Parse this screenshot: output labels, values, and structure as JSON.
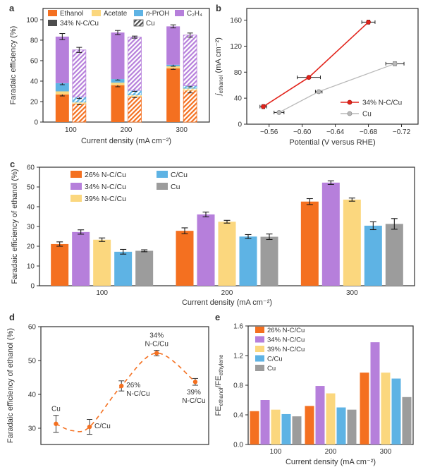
{
  "figure": {
    "background": "#ffffff"
  },
  "palette": {
    "orange": "#f47020",
    "purple": "#b67fdb",
    "yellow": "#fbd77e",
    "blue": "#5eb3e4",
    "gray": "#9c9c9c",
    "red": "#e2231b",
    "gray_line": "#b9b9b9",
    "dark": "#4d4d4d",
    "frame": "#2e2e2e",
    "text": "#333333",
    "error": "#1a1a1a"
  },
  "chart_data": [
    {
      "id": "a",
      "letter": "a",
      "type": "stacked_bar_pairs",
      "ylabel": "Faradaic efficiency (%)",
      "xlabel": "Current density (mA cm⁻²)",
      "ylim": [
        0,
        111
      ],
      "yticks": [
        {
          "v": 0,
          "l": "0"
        },
        {
          "v": 20,
          "l": "20"
        },
        {
          "v": 40,
          "l": "40"
        },
        {
          "v": 60,
          "l": "60"
        },
        {
          "v": 80,
          "l": "80"
        },
        {
          "v": 100,
          "l": "100"
        }
      ],
      "categories": [
        "100",
        "200",
        "300"
      ],
      "components": [
        "Ethanol",
        "Acetate",
        [
          {
            "t": "n",
            "i": true
          },
          {
            "t": "-PrOH"
          }
        ],
        "C₂H₄"
      ],
      "component_colors": [
        "orange",
        "yellow",
        "blue",
        "purple"
      ],
      "series": [
        {
          "name": "34% N-C/Cu",
          "pattern": "solid",
          "stacks": [
            [
              27,
              3,
              8,
              45.5
            ],
            [
              36,
              2.5,
              3.5,
              45.5
            ],
            [
              52.5,
              2,
              1.5,
              37.5
            ]
          ],
          "seg_errs": [
            [
              1.5,
              0,
              1.5
            ],
            [
              1.5,
              0,
              1
            ],
            [
              1,
              0,
              1.5
            ]
          ],
          "total_errs": [
            3,
            2,
            1.5
          ]
        },
        {
          "name": "Cu",
          "pattern": "hatched",
          "stacks": [
            [
              18,
              1.5,
              5,
              46
            ],
            [
              25,
              1.5,
              4.5,
              52
            ],
            [
              31,
              2,
              2.5,
              49.5
            ]
          ],
          "seg_errs": [
            [
              1,
              0,
              1.5
            ],
            [
              1,
              0,
              1
            ],
            [
              2.5,
              0,
              1
            ]
          ],
          "total_errs": [
            2.5,
            1,
            2
          ]
        }
      ]
    },
    {
      "id": "b",
      "letter": "b",
      "type": "line_scatter",
      "ylabel": [
        {
          "t": "j",
          "i": true
        },
        {
          "t": "ethanol",
          "sub": true
        },
        {
          "t": " (mA cm⁻²)"
        }
      ],
      "xlabel": "Potential (V versus RHE)",
      "xlim": [
        -0.533,
        -0.74
      ],
      "ylim": [
        0,
        178
      ],
      "xticks": [
        {
          "v": -0.56,
          "l": "−0.56"
        },
        {
          "v": -0.6,
          "l": "−0.60"
        },
        {
          "v": -0.64,
          "l": "−0.64"
        },
        {
          "v": -0.68,
          "l": "−0.68"
        },
        {
          "v": -0.72,
          "l": "−0.72"
        }
      ],
      "yticks": [
        {
          "v": 0,
          "l": "0"
        },
        {
          "v": 40,
          "l": "40"
        },
        {
          "v": 80,
          "l": "80"
        },
        {
          "v": 120,
          "l": "120"
        },
        {
          "v": 160,
          "l": "160"
        }
      ],
      "series": [
        {
          "name": "34% N-C/Cu",
          "color": "red",
          "points": [
            {
              "x": -0.553,
              "y": 27,
              "xerr": 0.004,
              "yerr": 3
            },
            {
              "x": -0.608,
              "y": 72,
              "xerr": 0.014,
              "yerr": 2
            },
            {
              "x": -0.68,
              "y": 157,
              "xerr": 0.008,
              "yerr": 3
            }
          ]
        },
        {
          "name": "Cu",
          "color": "gray_line",
          "points": [
            {
              "x": -0.572,
              "y": 18,
              "xerr": 0.006,
              "yerr": 2
            },
            {
              "x": -0.62,
              "y": 50,
              "xerr": 0.004,
              "yerr": 2
            },
            {
              "x": -0.712,
              "y": 93,
              "xerr": 0.011,
              "yerr": 3
            }
          ]
        }
      ]
    },
    {
      "id": "c",
      "letter": "c",
      "type": "grouped_bar",
      "ylabel": "Faradaic efficiency of ethanol (%)",
      "xlabel": "Current density (mA cm⁻²)",
      "ylim": [
        0,
        60
      ],
      "yticks": [
        {
          "v": 0,
          "l": "0"
        },
        {
          "v": 10,
          "l": "10"
        },
        {
          "v": 20,
          "l": "20"
        },
        {
          "v": 30,
          "l": "30"
        },
        {
          "v": 40,
          "l": "40"
        },
        {
          "v": 50,
          "l": "50"
        },
        {
          "v": 60,
          "l": "60"
        }
      ],
      "categories": [
        "100",
        "200",
        "300"
      ],
      "series": [
        {
          "name": "26% N-C/Cu",
          "color": "orange",
          "values": [
            21.1,
            27.8,
            42.6
          ],
          "errs": [
            1.1,
            1.5,
            1.5
          ]
        },
        {
          "name": "34% N-C/Cu",
          "color": "purple",
          "values": [
            27.2,
            36.1,
            52.2
          ],
          "errs": [
            1.1,
            1.2,
            0.9
          ]
        },
        {
          "name": "39% N-C/Cu",
          "color": "yellow",
          "values": [
            23.3,
            32.4,
            43.6
          ],
          "errs": [
            0.9,
            0.7,
            0.8
          ]
        },
        {
          "name": "C/Cu",
          "color": "blue",
          "values": [
            17.2,
            24.9,
            30.4
          ],
          "errs": [
            1.2,
            1.0,
            2.0
          ]
        },
        {
          "name": "Cu",
          "color": "gray",
          "values": [
            17.7,
            24.8,
            31.3
          ],
          "errs": [
            0.5,
            1.4,
            2.7
          ]
        }
      ]
    },
    {
      "id": "d",
      "letter": "d",
      "type": "scatter_curve",
      "ylabel": "Faradaic efficiency of ethanol (%)",
      "ylim": [
        25.2,
        60
      ],
      "yticks": [
        {
          "v": 30,
          "l": "30"
        },
        {
          "v": 40,
          "l": "40"
        },
        {
          "v": 50,
          "l": "50"
        },
        {
          "v": 60,
          "l": "60"
        }
      ],
      "line_color": "orange",
      "points": [
        {
          "label_lines": [
            "Cu"
          ],
          "label_pos": "above",
          "xf": 0.09,
          "y": 31.3,
          "err": 2.5
        },
        {
          "label_lines": [
            "C/Cu"
          ],
          "label_pos": "right",
          "xf": 0.29,
          "y": 30.4,
          "err": 2.2
        },
        {
          "label_lines": [
            "26%",
            "N-C/Cu"
          ],
          "label_pos": "right",
          "xf": 0.48,
          "y": 42.5,
          "err": 1.5
        },
        {
          "label_lines": [
            "34%",
            "N-C/Cu"
          ],
          "label_pos": "above",
          "xf": 0.69,
          "y": 52.2,
          "err": 0.8
        },
        {
          "label_lines": [
            "39%",
            "N-C/Cu"
          ],
          "label_pos": "below",
          "xf": 0.92,
          "y": 43.7,
          "err": 1.0
        }
      ],
      "curve_extra": [
        {
          "after_index": 0,
          "xf": 0.185,
          "y": 29.3
        }
      ]
    },
    {
      "id": "e",
      "letter": "e",
      "type": "grouped_bar",
      "ylabel": [
        {
          "t": "FE"
        },
        {
          "t": "ethanol",
          "sub": true
        },
        {
          "t": "/FE"
        },
        {
          "t": "ethylene",
          "sub": true
        }
      ],
      "xlabel": "Current density (mA cm⁻²)",
      "ylim": [
        0,
        1.6
      ],
      "yticks": [
        {
          "v": 0,
          "l": "0.0"
        },
        {
          "v": 0.4,
          "l": "0.4"
        },
        {
          "v": 0.8,
          "l": "0.8"
        },
        {
          "v": 1.2,
          "l": "1.2"
        },
        {
          "v": 1.6,
          "l": "1.6"
        }
      ],
      "categories": [
        "100",
        "200",
        "300"
      ],
      "series": [
        {
          "name": "26% N-C/Cu",
          "color": "orange",
          "values": [
            0.45,
            0.52,
            0.97
          ]
        },
        {
          "name": "34% N-C/Cu",
          "color": "purple",
          "values": [
            0.6,
            0.79,
            1.38
          ]
        },
        {
          "name": "39% N-C/Cu",
          "color": "yellow",
          "values": [
            0.47,
            0.69,
            0.97
          ]
        },
        {
          "name": "C/Cu",
          "color": "blue",
          "values": [
            0.41,
            0.5,
            0.89
          ]
        },
        {
          "name": "Cu",
          "color": "gray",
          "values": [
            0.38,
            0.47,
            0.64
          ]
        }
      ]
    }
  ]
}
